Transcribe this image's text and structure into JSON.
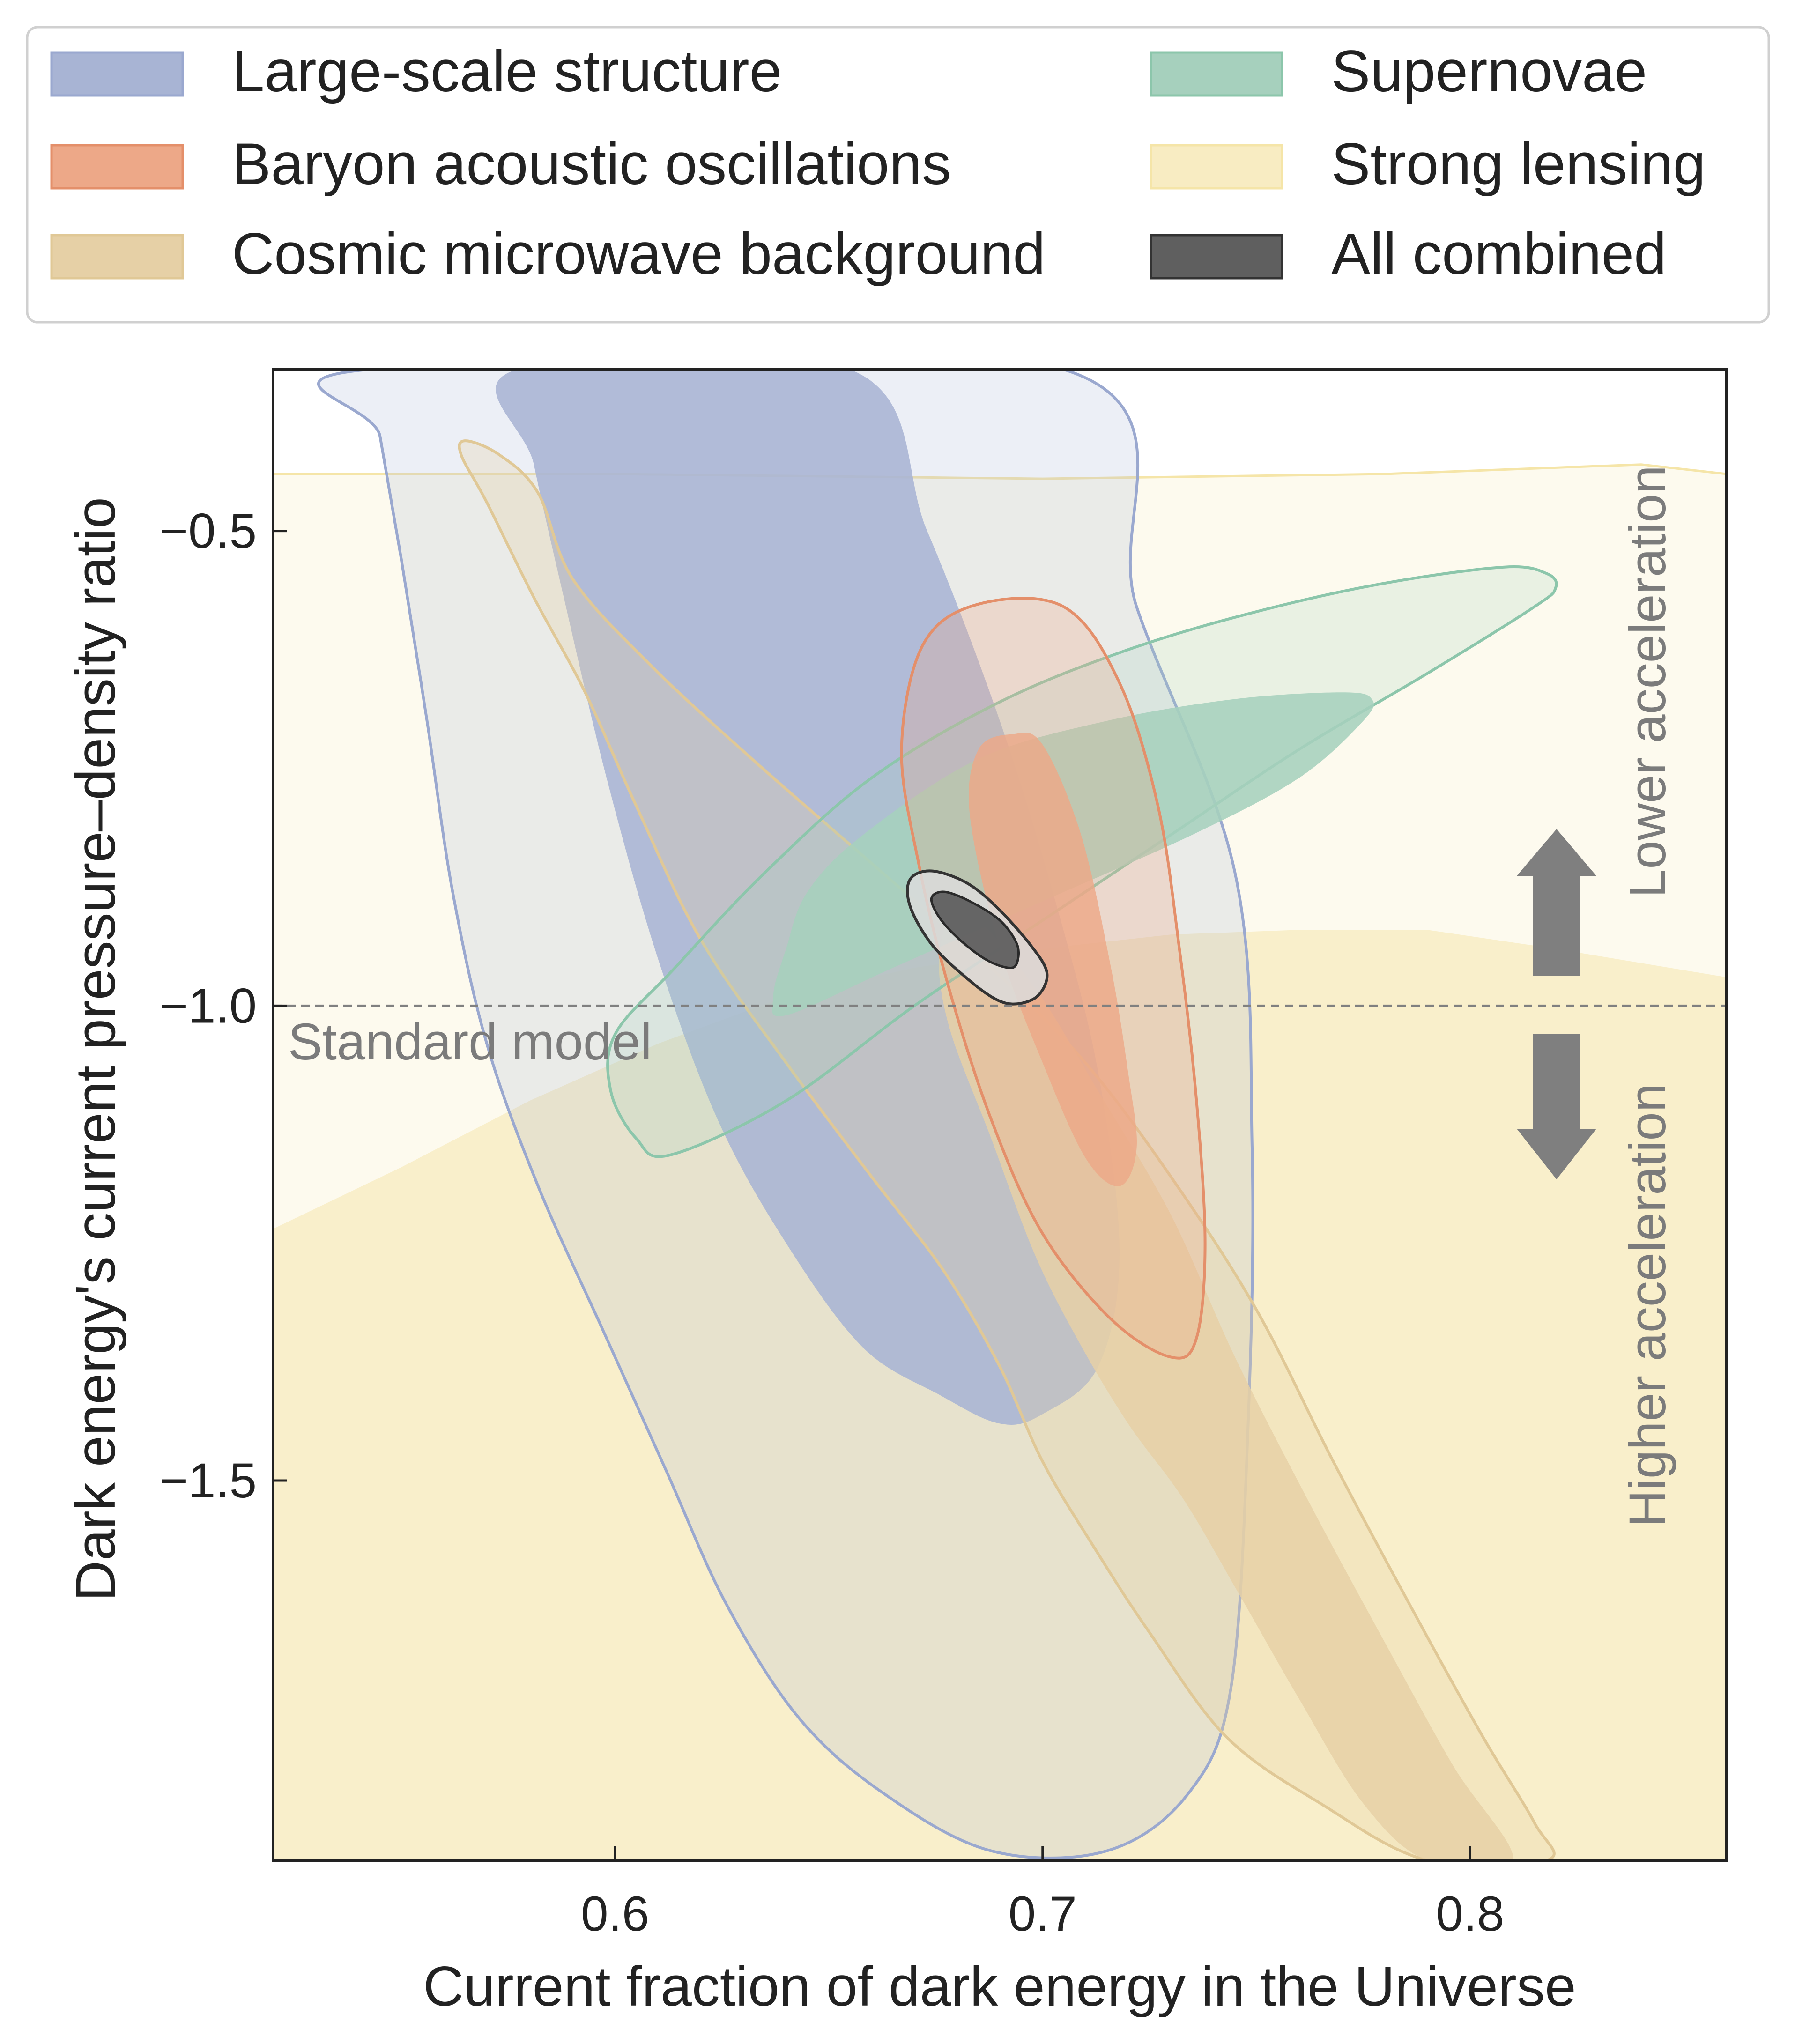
{
  "chart_data": {
    "type": "contour",
    "title": "",
    "xlabel": "Current fraction of dark energy in the Universe",
    "ylabel": "Dark energy's current pressure–density ratio",
    "xlim": [
      0.52,
      0.86
    ],
    "ylim": [
      -1.9,
      -0.33
    ],
    "xticks": [
      0.6,
      0.7,
      0.8
    ],
    "xtick_labels": [
      "0.6",
      "0.7",
      "0.8"
    ],
    "yticks": [
      -0.5,
      -1.0,
      -1.5
    ],
    "ytick_labels": [
      "−0.5",
      "−1.0",
      "−1.5"
    ],
    "grid": false,
    "legend_position": "top, outside plot",
    "reference_line": {
      "y": -1.0,
      "label": "Standard model"
    },
    "annotations": {
      "up": "Lower acceleration",
      "down": "Higher acceleration"
    },
    "series": [
      {
        "name": "Large-scale structure",
        "color": "#a8b4d4",
        "edge": "#9aa8cf",
        "contours": {
          "outer": [
            [
              0.542,
              -0.33
            ],
            [
              0.705,
              -0.33
            ],
            [
              0.722,
              -0.58
            ],
            [
              0.745,
              -0.86
            ],
            [
              0.749,
              -1.15
            ],
            [
              0.748,
              -1.45
            ],
            [
              0.744,
              -1.72
            ],
            [
              0.734,
              -1.83
            ],
            [
              0.715,
              -1.89
            ],
            [
              0.688,
              -1.89
            ],
            [
              0.663,
              -1.83
            ],
            [
              0.643,
              -1.75
            ],
            [
              0.626,
              -1.63
            ],
            [
              0.612,
              -1.49
            ],
            [
              0.597,
              -1.34
            ],
            [
              0.582,
              -1.19
            ],
            [
              0.57,
              -1.04
            ],
            [
              0.562,
              -0.88
            ],
            [
              0.556,
              -0.7
            ],
            [
              0.55,
              -0.53
            ],
            [
              0.545,
              -0.4
            ]
          ],
          "inner": [
            [
              0.577,
              -0.33
            ],
            [
              0.655,
              -0.33
            ],
            [
              0.673,
              -0.5
            ],
            [
              0.69,
              -0.7
            ],
            [
              0.703,
              -0.89
            ],
            [
              0.713,
              -1.07
            ],
            [
              0.718,
              -1.26
            ],
            [
              0.713,
              -1.38
            ],
            [
              0.7,
              -1.43
            ],
            [
              0.69,
              -1.44
            ],
            [
              0.676,
              -1.41
            ],
            [
              0.658,
              -1.36
            ],
            [
              0.64,
              -1.25
            ],
            [
              0.624,
              -1.12
            ],
            [
              0.61,
              -0.95
            ],
            [
              0.598,
              -0.76
            ],
            [
              0.588,
              -0.57
            ],
            [
              0.581,
              -0.43
            ]
          ]
        }
      },
      {
        "name": "Baryon acoustic oscillations",
        "color": "#eda888",
        "edge": "#e48f6a",
        "contours": {
          "outer": [
            [
              0.685,
              -0.577
            ],
            [
              0.705,
              -0.58
            ],
            [
              0.718,
              -0.66
            ],
            [
              0.727,
              -0.79
            ],
            [
              0.732,
              -0.94
            ],
            [
              0.736,
              -1.1
            ],
            [
              0.738,
              -1.25
            ],
            [
              0.736,
              -1.35
            ],
            [
              0.73,
              -1.37
            ],
            [
              0.716,
              -1.33
            ],
            [
              0.7,
              -1.24
            ],
            [
              0.688,
              -1.12
            ],
            [
              0.678,
              -0.98
            ],
            [
              0.671,
              -0.85
            ],
            [
              0.667,
              -0.73
            ],
            [
              0.672,
              -0.62
            ]
          ],
          "inner": [
            [
              0.693,
              -0.714
            ],
            [
              0.7,
              -0.725
            ],
            [
              0.709,
              -0.82
            ],
            [
              0.716,
              -0.96
            ],
            [
              0.72,
              -1.07
            ],
            [
              0.722,
              -1.15
            ],
            [
              0.718,
              -1.19
            ],
            [
              0.71,
              -1.16
            ],
            [
              0.7,
              -1.06
            ],
            [
              0.69,
              -0.94
            ],
            [
              0.683,
              -0.8
            ],
            [
              0.685,
              -0.73
            ]
          ]
        }
      },
      {
        "name": "Cosmic microwave background",
        "color": "#e6d0a6",
        "edge": "#e0c896",
        "contours": {
          "outer": [
            [
              0.565,
              -0.405
            ],
            [
              0.573,
              -0.42
            ],
            [
              0.582,
              -0.46
            ],
            [
              0.59,
              -0.55
            ],
            [
              0.608,
              -0.64
            ],
            [
              0.632,
              -0.74
            ],
            [
              0.66,
              -0.85
            ],
            [
              0.688,
              -0.96
            ],
            [
              0.71,
              -1.06
            ],
            [
              0.73,
              -1.18
            ],
            [
              0.75,
              -1.32
            ],
            [
              0.768,
              -1.48
            ],
            [
              0.787,
              -1.64
            ],
            [
              0.803,
              -1.77
            ],
            [
              0.815,
              -1.86
            ],
            [
              0.818,
              -1.9
            ],
            [
              0.79,
              -1.9
            ],
            [
              0.765,
              -1.84
            ],
            [
              0.743,
              -1.77
            ],
            [
              0.725,
              -1.66
            ],
            [
              0.712,
              -1.57
            ],
            [
              0.7,
              -1.48
            ],
            [
              0.69,
              -1.38
            ],
            [
              0.677,
              -1.28
            ],
            [
              0.66,
              -1.18
            ],
            [
              0.64,
              -1.06
            ],
            [
              0.62,
              -0.93
            ],
            [
              0.605,
              -0.79
            ],
            [
              0.593,
              -0.67
            ],
            [
              0.581,
              -0.57
            ],
            [
              0.57,
              -0.47
            ],
            [
              0.564,
              -0.42
            ]
          ],
          "inner": [
            [
              0.682,
              -0.9
            ],
            [
              0.698,
              -0.98
            ],
            [
              0.713,
              -1.09
            ],
            [
              0.73,
              -1.22
            ],
            [
              0.745,
              -1.37
            ],
            [
              0.762,
              -1.52
            ],
            [
              0.78,
              -1.67
            ],
            [
              0.796,
              -1.8
            ],
            [
              0.81,
              -1.9
            ],
            [
              0.79,
              -1.9
            ],
            [
              0.775,
              -1.84
            ],
            [
              0.76,
              -1.73
            ],
            [
              0.746,
              -1.62
            ],
            [
              0.733,
              -1.52
            ],
            [
              0.72,
              -1.44
            ],
            [
              0.708,
              -1.35
            ],
            [
              0.698,
              -1.26
            ],
            [
              0.688,
              -1.14
            ],
            [
              0.678,
              -1.02
            ],
            [
              0.676,
              -0.94
            ]
          ]
        }
      },
      {
        "name": "Supernovae",
        "color": "#a6d0bd",
        "edge": "#8cc6ab",
        "contours": {
          "outer": [
            [
              0.613,
              -1.157
            ],
            [
              0.64,
              -1.1
            ],
            [
              0.67,
              -1.0
            ],
            [
              0.7,
              -0.91
            ],
            [
              0.73,
              -0.82
            ],
            [
              0.76,
              -0.73
            ],
            [
              0.79,
              -0.65
            ],
            [
              0.815,
              -0.58
            ],
            [
              0.82,
              -0.56
            ],
            [
              0.818,
              -0.545
            ],
            [
              0.808,
              -0.538
            ],
            [
              0.78,
              -0.555
            ],
            [
              0.75,
              -0.585
            ],
            [
              0.72,
              -0.625
            ],
            [
              0.69,
              -0.68
            ],
            [
              0.66,
              -0.76
            ],
            [
              0.635,
              -0.86
            ],
            [
              0.614,
              -0.96
            ],
            [
              0.6,
              -1.03
            ],
            [
              0.599,
              -1.09
            ],
            [
              0.605,
              -1.14
            ]
          ],
          "inner": [
            [
              0.64,
              -1.01
            ],
            [
              0.665,
              -0.96
            ],
            [
              0.7,
              -0.89
            ],
            [
              0.735,
              -0.82
            ],
            [
              0.76,
              -0.76
            ],
            [
              0.775,
              -0.7
            ],
            [
              0.777,
              -0.677
            ],
            [
              0.77,
              -0.67
            ],
            [
              0.745,
              -0.677
            ],
            [
              0.715,
              -0.7
            ],
            [
              0.685,
              -0.74
            ],
            [
              0.658,
              -0.82
            ],
            [
              0.645,
              -0.88
            ],
            [
              0.64,
              -0.94
            ],
            [
              0.637,
              -0.99
            ]
          ]
        }
      },
      {
        "name": "Strong lensing",
        "color": "#f8ecc2",
        "edge": "#f5e5a8",
        "contours": {
          "outer": [
            [
              0.52,
              -0.44
            ],
            [
              0.6,
              -0.44
            ],
            [
              0.7,
              -0.445
            ],
            [
              0.78,
              -0.44
            ],
            [
              0.84,
              -0.43
            ],
            [
              0.86,
              -0.44
            ],
            [
              0.86,
              -1.9
            ],
            [
              0.52,
              -1.9
            ]
          ],
          "inner": [
            [
              0.52,
              -1.235
            ],
            [
              0.55,
              -1.17
            ],
            [
              0.58,
              -1.1
            ],
            [
              0.61,
              -1.04
            ],
            [
              0.64,
              -0.99
            ],
            [
              0.67,
              -0.96
            ],
            [
              0.7,
              -0.94
            ],
            [
              0.73,
              -0.925
            ],
            [
              0.76,
              -0.92
            ],
            [
              0.79,
              -0.92
            ],
            [
              0.82,
              -0.94
            ],
            [
              0.86,
              -0.97
            ],
            [
              0.86,
              -1.9
            ],
            [
              0.52,
              -1.9
            ]
          ]
        }
      },
      {
        "name": "All combined",
        "color": "#5f5f5f",
        "edge": "#333333",
        "contours": {
          "outer": [
            [
              0.694,
              -0.998
            ],
            [
              0.699,
              -0.989
            ],
            [
              0.701,
              -0.965
            ],
            [
              0.697,
              -0.935
            ],
            [
              0.689,
              -0.895
            ],
            [
              0.682,
              -0.87
            ],
            [
              0.674,
              -0.858
            ],
            [
              0.669,
              -0.867
            ],
            [
              0.669,
              -0.895
            ],
            [
              0.674,
              -0.935
            ],
            [
              0.682,
              -0.97
            ],
            [
              0.689,
              -0.993
            ]
          ],
          "inner": [
            [
              0.692,
              -0.96
            ],
            [
              0.694,
              -0.955
            ],
            [
              0.694,
              -0.935
            ],
            [
              0.69,
              -0.91
            ],
            [
              0.683,
              -0.89
            ],
            [
              0.677,
              -0.88
            ],
            [
              0.674,
              -0.887
            ],
            [
              0.676,
              -0.908
            ],
            [
              0.681,
              -0.932
            ],
            [
              0.687,
              -0.952
            ]
          ]
        }
      }
    ]
  }
}
